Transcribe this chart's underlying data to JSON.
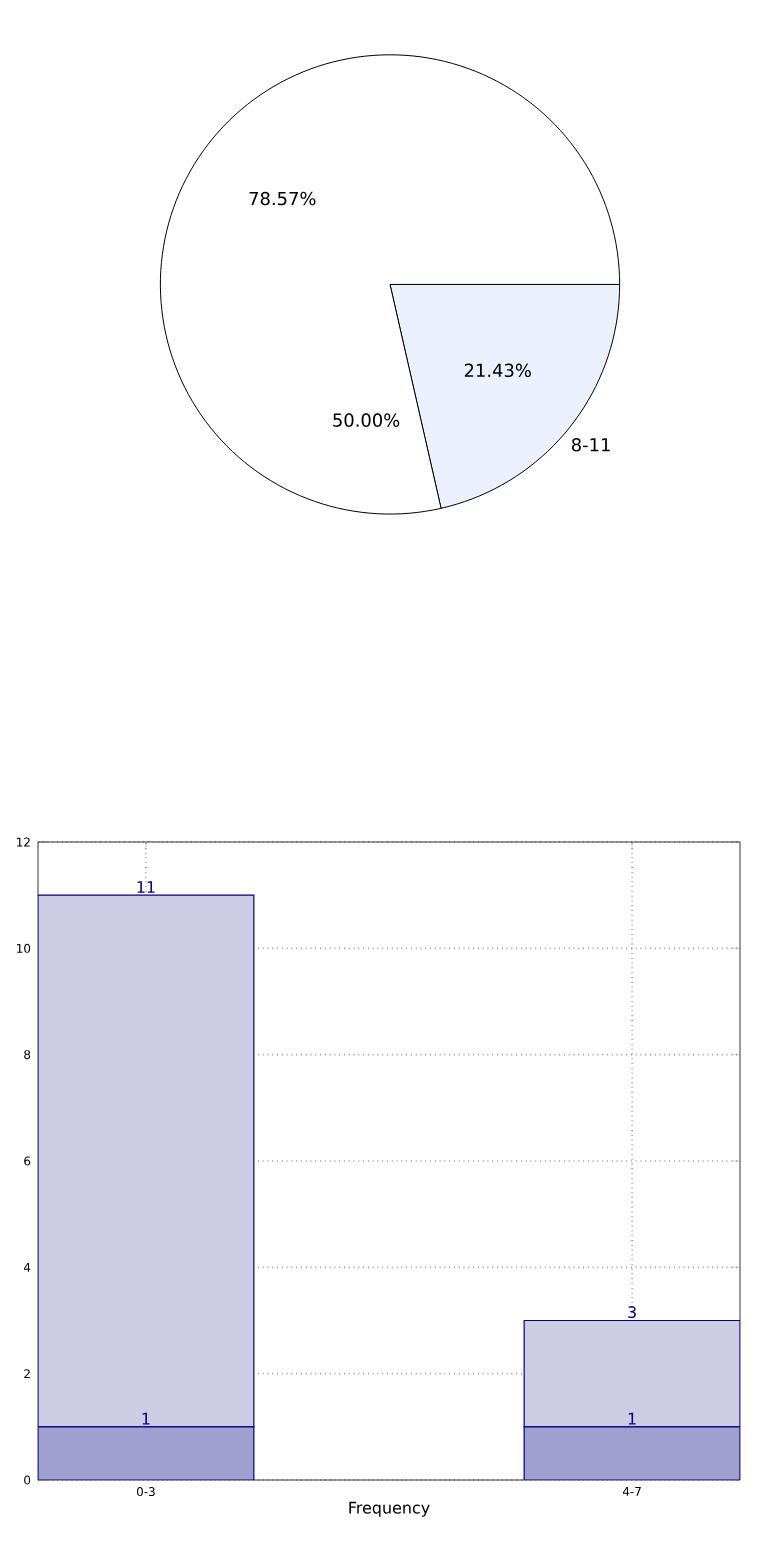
{
  "chart_data": [
    {
      "type": "pie",
      "categories": [
        "8-11",
        null
      ],
      "values": [
        21.43,
        78.57
      ],
      "colors": [
        "#eaf0fc",
        "#ffffff"
      ],
      "value_labels": [
        "21.43%",
        "78.57%"
      ],
      "annotations": [
        "50.00%"
      ]
    },
    {
      "type": "bar",
      "stacked": true,
      "categories": [
        "0-3",
        "4-7"
      ],
      "xlabel": "Frequency",
      "ylim": [
        0,
        12
      ],
      "yticks": [
        0,
        2,
        4,
        6,
        8,
        10,
        12
      ],
      "grid": true,
      "totals": [
        "11",
        "3"
      ],
      "series": [
        {
          "color": "#a0a0d0",
          "values": [
            1,
            1
          ],
          "value_labels": [
            "1",
            "1"
          ]
        },
        {
          "color": "#ccccE4",
          "values": [
            10,
            2
          ]
        }
      ]
    }
  ]
}
